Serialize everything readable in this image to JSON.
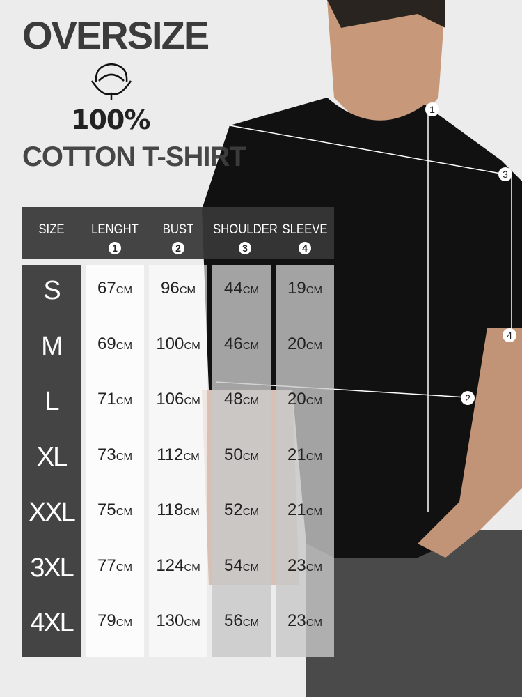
{
  "title": "OVERSIZE",
  "percent": "100%",
  "subtitle": "COTTON T-SHIRT",
  "unit": "CM",
  "table": {
    "headers": [
      {
        "label": "SIZE",
        "num": ""
      },
      {
        "label": "LENGHT",
        "num": "1"
      },
      {
        "label": "BUST",
        "num": "2"
      },
      {
        "label": "SHOULDER",
        "num": "3"
      },
      {
        "label": "SLEEVE",
        "num": "4"
      }
    ],
    "rows": [
      {
        "size": "S",
        "length": "67",
        "bust": "96",
        "shoulder": "44",
        "sleeve": "19"
      },
      {
        "size": "M",
        "length": "69",
        "bust": "100",
        "shoulder": "46",
        "sleeve": "20"
      },
      {
        "size": "L",
        "length": "71",
        "bust": "106",
        "shoulder": "48",
        "sleeve": "20"
      },
      {
        "size": "XL",
        "length": "73",
        "bust": "112",
        "shoulder": "50",
        "sleeve": "21"
      },
      {
        "size": "XXL",
        "length": "75",
        "bust": "118",
        "shoulder": "52",
        "sleeve": "21"
      },
      {
        "size": "3XL",
        "length": "77",
        "bust": "124",
        "shoulder": "54",
        "sleeve": "23"
      },
      {
        "size": "4XL",
        "length": "79",
        "bust": "130",
        "shoulder": "56",
        "sleeve": "23"
      }
    ]
  },
  "markers": [
    "1",
    "2",
    "3",
    "4"
  ],
  "colors": {
    "background": "#ececec",
    "header": "#373737",
    "size_column": "#444444",
    "shirt": "#111111"
  }
}
